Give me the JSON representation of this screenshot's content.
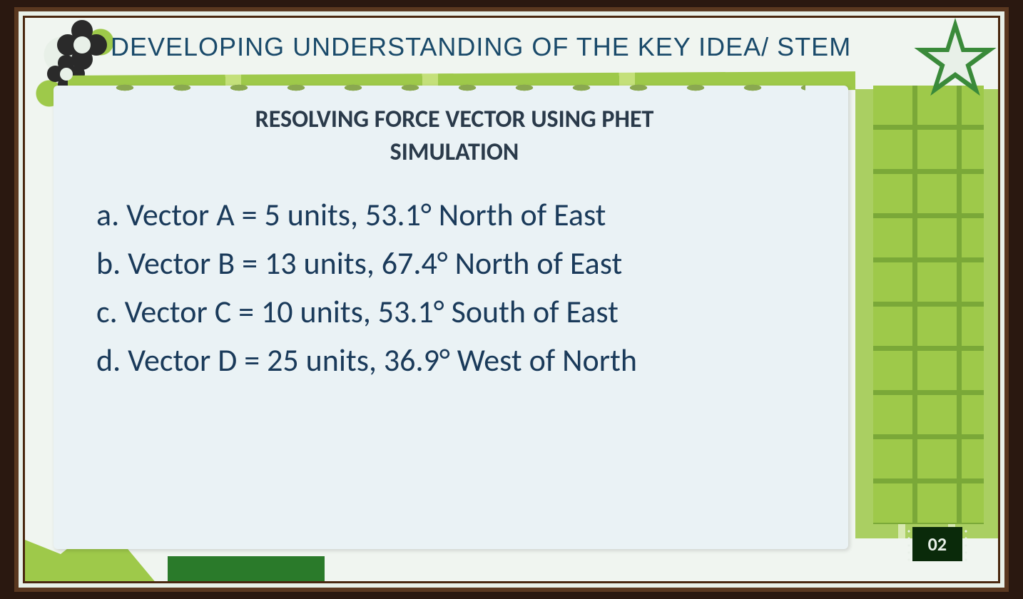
{
  "header": "DEVELOPING UNDERSTANDING  OF THE KEY IDEA/ STEM",
  "subtitle_line1": "RESOLVING FORCE VECTOR USING PHET",
  "subtitle_line2": "SIMULATION",
  "items": {
    "a": "a. Vector A = 5 units, 53.1° North of East",
    "b": "b. Vector B = 13 units, 67.4° North of East",
    "c": "c. Vector C = 10 units, 53.1° South of East",
    "d": "d. Vector D = 25 units, 36.9° West of North"
  },
  "page_number": "02",
  "colors": {
    "frame": "#5a3820",
    "bg": "#f0f5f0",
    "accent_green": "#9ec94a",
    "dark_green": "#3a8a3a",
    "text_header": "#1a4a6a",
    "text_body": "#1a3a5a",
    "paper": "#eaf2f5",
    "flower": "#2a2a2a"
  },
  "typography": {
    "header_fontsize": 36,
    "subtitle_fontsize": 34,
    "body_fontsize": 44,
    "pagenum_fontsize": 26
  },
  "vectors": [
    {
      "name": "A",
      "magnitude": 5,
      "angle": 53.1,
      "direction": "North of East"
    },
    {
      "name": "B",
      "magnitude": 13,
      "angle": 67.4,
      "direction": "North of East"
    },
    {
      "name": "C",
      "magnitude": 10,
      "angle": 53.1,
      "direction": "South of East"
    },
    {
      "name": "D",
      "magnitude": 25,
      "angle": 36.9,
      "direction": "West of North"
    }
  ]
}
